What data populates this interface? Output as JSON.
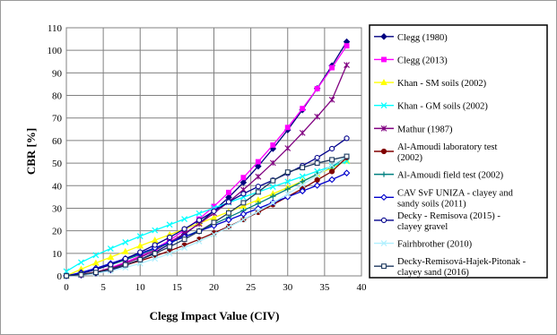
{
  "chart_data": {
    "type": "line",
    "xlabel": "Clegg  Impact Value   (CIV)",
    "ylabel": "CBR   [%]",
    "xlim": [
      0,
      40
    ],
    "ylim": [
      0,
      110
    ],
    "x_ticks": [
      "0",
      "5",
      "10",
      "15",
      "20",
      "25",
      "30",
      "35",
      "40"
    ],
    "y_ticks": [
      "0",
      "10",
      "20",
      "30",
      "40",
      "50",
      "60",
      "70",
      "80",
      "90",
      "100",
      "110"
    ],
    "grid": true,
    "legend_position": "right",
    "series": [
      {
        "name": "Clegg (1980)",
        "color": "#000080",
        "marker": "diamond",
        "filled": true,
        "x": [
          0,
          2,
          4,
          6,
          8,
          10,
          12,
          14,
          16,
          18,
          20,
          22,
          24,
          26,
          28,
          30,
          32,
          34,
          36,
          38
        ],
        "y": [
          0,
          0.3,
          1.2,
          2.6,
          4.6,
          7.2,
          10.4,
          14.1,
          18.4,
          23.3,
          28.8,
          34.8,
          41.4,
          48.6,
          56.4,
          64.7,
          73.6,
          83.1,
          93.2,
          103.8
        ]
      },
      {
        "name": "Clegg (2013)",
        "color": "#ff00ff",
        "marker": "square",
        "filled": true,
        "x": [
          0,
          2,
          4,
          6,
          8,
          10,
          12,
          14,
          16,
          18,
          20,
          22,
          24,
          26,
          28,
          30,
          32,
          34,
          36,
          38
        ],
        "y": [
          0,
          0.4,
          1.6,
          3.6,
          6.0,
          8.8,
          12.0,
          15.8,
          20.2,
          25.2,
          30.8,
          37.0,
          43.6,
          50.6,
          58.0,
          65.8,
          74.2,
          83.0,
          92.3,
          102.0
        ]
      },
      {
        "name": "Khan - SM  soils (2002)",
        "color": "#ffff00",
        "marker": "triangle",
        "filled": true,
        "x": [
          0,
          2,
          4,
          6,
          8,
          10,
          12,
          14,
          16,
          18,
          20,
          22,
          24,
          26,
          28,
          30,
          32,
          34,
          36,
          38
        ],
        "y": [
          0,
          3.0,
          5.7,
          8.3,
          10.8,
          13.3,
          15.8,
          18.3,
          20.8,
          23.3,
          25.8,
          28.4,
          31.0,
          33.7,
          36.4,
          39.2,
          42.0,
          45.0,
          48.0,
          51.0
        ]
      },
      {
        "name": "Khan - GM  soils (2002)",
        "color": "#00ffff",
        "marker": "x",
        "filled": false,
        "x": [
          0,
          2,
          4,
          6,
          8,
          10,
          12,
          14,
          16,
          18,
          20,
          22,
          24,
          26,
          28,
          30,
          32,
          34,
          36,
          38
        ],
        "y": [
          2.0,
          6.0,
          9.2,
          12.1,
          14.9,
          17.6,
          20.2,
          22.7,
          25.2,
          27.7,
          30.1,
          32.5,
          34.9,
          37.2,
          39.5,
          41.8,
          44.1,
          46.4,
          48.6,
          50.8
        ]
      },
      {
        "name": "Mathur (1987)",
        "color": "#800080",
        "marker": "star",
        "filled": false,
        "x": [
          0,
          2,
          4,
          6,
          8,
          10,
          12,
          14,
          16,
          18,
          20,
          22,
          24,
          26,
          28,
          30,
          32,
          34,
          36,
          38
        ],
        "y": [
          0,
          0.5,
          1.6,
          3.3,
          5.5,
          8.2,
          11.3,
          14.9,
          18.8,
          23.1,
          27.8,
          32.8,
          38.2,
          44.0,
          50.1,
          56.6,
          63.4,
          70.6,
          78.1,
          93.5
        ]
      },
      {
        "name": "Al-Amoudi laboratory test (2002)",
        "color": "#800000",
        "marker": "circle",
        "filled": true,
        "x": [
          0,
          2,
          4,
          6,
          8,
          10,
          12,
          14,
          16,
          18,
          20,
          22,
          24,
          26,
          28,
          30,
          32,
          34,
          36,
          38
        ],
        "y": [
          0,
          0.6,
          1.7,
          3.1,
          4.8,
          6.7,
          8.8,
          11.1,
          13.6,
          16.2,
          19.0,
          21.9,
          25.0,
          28.2,
          31.6,
          35.1,
          38.7,
          42.5,
          46.3,
          52.5
        ]
      },
      {
        "name": "Al-Amoudi field test (2002)",
        "color": "#008080",
        "marker": "plus",
        "filled": false,
        "x": [
          0,
          2,
          4,
          6,
          8,
          10,
          12,
          14,
          16,
          18,
          20,
          22,
          24,
          26,
          28,
          30,
          32,
          34,
          36,
          38
        ],
        "y": [
          0,
          1.2,
          2.9,
          4.9,
          7.1,
          9.5,
          12.0,
          14.6,
          17.3,
          20.1,
          23.0,
          26.0,
          29.0,
          32.1,
          35.3,
          38.5,
          41.8,
          45.1,
          48.5,
          53.0
        ]
      },
      {
        "name": "CAV SvF UNIZA - clayey and sandy soils (2011)",
        "color": "#0000cc",
        "marker": "diamond",
        "filled": false,
        "x": [
          0,
          2,
          4,
          6,
          8,
          10,
          12,
          14,
          16,
          18,
          20,
          22,
          24,
          26,
          28,
          30,
          32,
          34,
          36,
          38
        ],
        "y": [
          0,
          1.5,
          3.4,
          5.5,
          7.7,
          10.0,
          12.4,
          14.8,
          17.3,
          19.8,
          22.3,
          24.8,
          27.4,
          29.9,
          32.5,
          35.0,
          37.6,
          40.1,
          42.7,
          45.6
        ]
      },
      {
        "name": "Decky - Remisova (2015) - clayey gravel",
        "color": "#00008b",
        "marker": "circle",
        "filled": false,
        "x": [
          0,
          2,
          4,
          6,
          8,
          10,
          12,
          14,
          16,
          18,
          20,
          22,
          24,
          26,
          28,
          30,
          32,
          34,
          36,
          38
        ],
        "y": [
          0,
          1.0,
          2.8,
          5.0,
          7.6,
          10.5,
          13.7,
          17.1,
          20.8,
          24.7,
          28.7,
          32.8,
          36.4,
          39.6,
          42.4,
          45.5,
          48.8,
          52.4,
          56.4,
          61.0
        ]
      },
      {
        "name": "Fairhbrother (2010)",
        "color": "#b0f0ff",
        "marker": "x",
        "filled": false,
        "x": [
          0,
          2,
          4,
          6,
          8,
          10,
          12,
          14,
          16,
          18,
          20,
          22,
          24,
          26,
          28,
          30,
          32,
          34,
          36,
          38
        ],
        "y": [
          0,
          0.3,
          1.1,
          2.2,
          3.7,
          5.5,
          7.6,
          9.9,
          12.5,
          15.3,
          18.4,
          21.6,
          25.0,
          28.6,
          32.4,
          36.3,
          40.4,
          44.6,
          49.0,
          53.0
        ]
      },
      {
        "name": "Decky-Remisová-Hajek-Pitonak - clayey sand (2016)",
        "color": "#1f3a60",
        "marker": "square",
        "filled": false,
        "x": [
          0,
          2,
          4,
          6,
          8,
          10,
          12,
          14,
          16,
          18,
          20,
          22,
          24,
          26,
          28,
          30,
          32,
          34,
          36,
          38
        ],
        "y": [
          0,
          0.5,
          1.5,
          3.0,
          4.9,
          7.2,
          9.9,
          12.9,
          16.2,
          19.8,
          23.7,
          27.9,
          32.4,
          37.2,
          42.2,
          46.0,
          48.0,
          50.0,
          51.5,
          53.0
        ]
      }
    ]
  }
}
